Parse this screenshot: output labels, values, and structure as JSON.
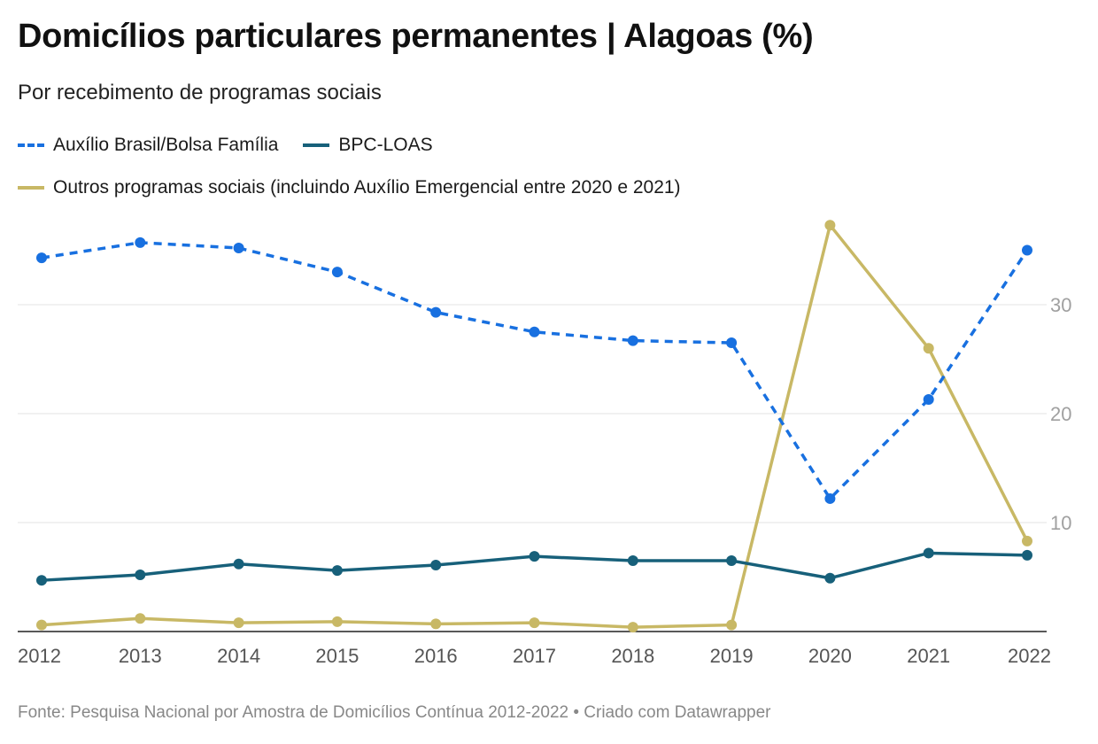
{
  "header": {
    "title": "Domicílios particulares permanentes | Alagoas (%)",
    "subtitle": "Por recebimento de programas sociais"
  },
  "legend": {
    "auxilio": "Auxílio Brasil/Bolsa Família",
    "bpc": "BPC-LOAS",
    "outros": "Outros programas sociais (incluindo Auxílio Emergencial entre 2020 e 2021)"
  },
  "footer": {
    "source": "Fonte: Pesquisa Nacional por Amostra de Domicílios Contínua 2012-2022 • Criado com Datawrapper"
  },
  "chart_data": {
    "type": "line",
    "title": "Domicílios particulares permanentes | Alagoas (%)",
    "subtitle": "Por recebimento de programas sociais",
    "xlabel": "",
    "ylabel": "",
    "x": [
      "2012",
      "2013",
      "2014",
      "2015",
      "2016",
      "2017",
      "2018",
      "2019",
      "2020",
      "2021",
      "2022"
    ],
    "ylim": [
      0,
      40
    ],
    "yticks": [
      10,
      20,
      30
    ],
    "yaxis_position": "right",
    "grid": true,
    "legend_position": "top-left",
    "series": [
      {
        "name": "Auxílio Brasil/Bolsa Família",
        "color": "#1870e0",
        "style": "dashed",
        "values": [
          34.3,
          35.7,
          35.2,
          33.0,
          29.3,
          27.5,
          26.7,
          26.5,
          12.2,
          21.3,
          35.0
        ]
      },
      {
        "name": "BPC-LOAS",
        "color": "#17607a",
        "style": "solid",
        "values": [
          4.7,
          5.2,
          6.2,
          5.6,
          6.1,
          6.9,
          6.5,
          6.5,
          4.9,
          7.2,
          7.0
        ]
      },
      {
        "name": "Outros programas sociais (incluindo Auxílio Emergencial entre 2020 e 2021)",
        "color": "#c8b865",
        "style": "solid",
        "values": [
          0.6,
          1.2,
          0.8,
          0.9,
          0.7,
          0.8,
          0.4,
          0.6,
          37.3,
          26.0,
          8.3
        ]
      }
    ]
  }
}
